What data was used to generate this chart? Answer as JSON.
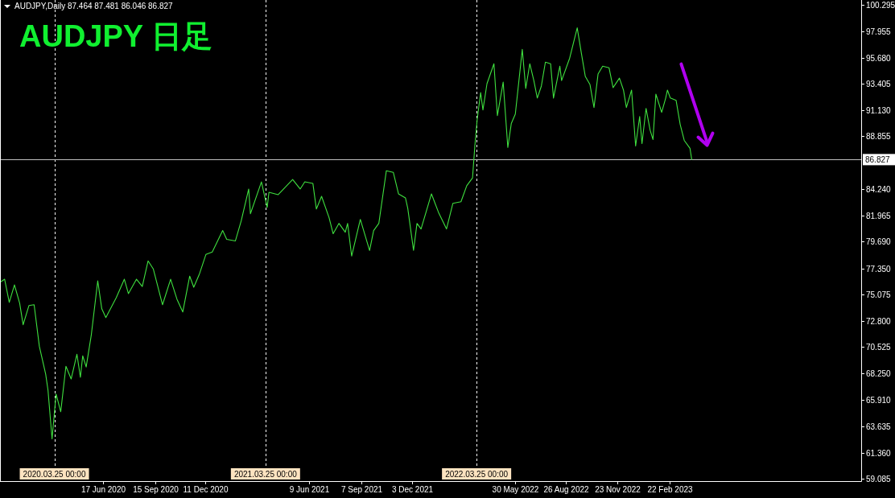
{
  "chart_data": {
    "type": "line",
    "title": "AUDJPY 日足",
    "annotations": [
      "AUDJPY,Daily 87.464 87.481 86.046 86.827"
    ],
    "x": [
      "2019-12-24",
      "2019-12-30",
      "2020-01-07",
      "2020-01-16",
      "2020-01-25",
      "2020-01-31",
      "2020-02-10",
      "2020-02-19",
      "2020-02-28",
      "2020-03-10",
      "2020-03-14",
      "2020-03-21",
      "2020-03-28",
      "2020-04-05",
      "2020-04-14",
      "2020-04-23",
      "2020-05-03",
      "2020-05-09",
      "2020-05-13",
      "2020-05-19",
      "2020-05-28",
      "2020-06-08",
      "2020-06-15",
      "2020-06-22",
      "2020-07-10",
      "2020-07-24",
      "2020-07-31",
      "2020-08-14",
      "2020-08-24",
      "2020-09-03",
      "2020-09-12",
      "2020-09-28",
      "2020-10-12",
      "2020-10-23",
      "2020-11-02",
      "2020-11-14",
      "2020-11-21",
      "2020-12-01",
      "2020-12-12",
      "2020-12-23",
      "2021-01-10",
      "2021-01-17",
      "2021-02-01",
      "2021-02-11",
      "2021-02-24",
      "2021-02-27",
      "2021-03-18",
      "2021-03-28",
      "2021-03-31",
      "2021-04-16",
      "2021-05-11",
      "2021-05-24",
      "2021-06-01",
      "2021-06-15",
      "2021-06-21",
      "2021-06-30",
      "2021-07-13",
      "2021-07-20",
      "2021-07-30",
      "2021-08-10",
      "2021-08-14",
      "2021-08-21",
      "2021-09-05",
      "2021-09-21",
      "2021-09-28",
      "2021-10-07",
      "2021-10-20",
      "2021-11-01",
      "2021-11-10",
      "2021-11-22",
      "2021-11-26",
      "2021-12-06",
      "2021-12-12",
      "2021-12-19",
      "2022-01-06",
      "2022-01-18",
      "2022-02-01",
      "2022-02-12",
      "2022-02-26",
      "2022-03-08",
      "2022-03-18",
      "2022-03-22",
      "2022-03-26",
      "2022-04-01",
      "2022-04-05",
      "2022-04-12",
      "2022-04-24",
      "2022-04-30",
      "2022-05-10",
      "2022-05-18",
      "2022-05-24",
      "2022-05-31",
      "2022-06-12",
      "2022-06-18",
      "2022-06-25",
      "2022-07-02",
      "2022-07-08",
      "2022-07-15",
      "2022-07-22",
      "2022-07-31",
      "2022-08-05",
      "2022-08-16",
      "2022-08-19",
      "2022-09-02",
      "2022-09-15",
      "2022-09-22",
      "2022-09-29",
      "2022-10-07",
      "2022-10-14",
      "2022-10-21",
      "2022-10-29",
      "2022-11-09",
      "2022-11-16",
      "2022-11-27",
      "2022-12-04",
      "2022-12-09",
      "2022-12-18",
      "2022-12-25",
      "2023-01-01",
      "2023-01-05",
      "2023-01-12",
      "2023-01-19",
      "2023-01-24",
      "2023-01-29",
      "2023-02-08",
      "2023-02-15",
      "2023-02-18",
      "2023-02-23",
      "2023-03-05",
      "2023-03-12",
      "2023-03-19",
      "2023-03-29",
      "2023-04-01"
    ],
    "series": [
      {
        "color": "#3fe03f",
        "values": [
          76.22,
          76.43,
          74.42,
          75.94,
          74.35,
          72.47,
          74.14,
          74.21,
          70.6,
          68.17,
          66.78,
          62.55,
          66.44,
          64.91,
          68.86,
          67.76,
          69.91,
          67.9,
          69.77,
          68.8,
          71.64,
          76.29,
          73.86,
          73.1,
          74.83,
          76.43,
          75.18,
          76.43,
          75.8,
          78.02,
          77.33,
          74.21,
          76.43,
          74.69,
          73.58,
          76.7,
          75.73,
          76.91,
          78.58,
          78.79,
          80.66,
          79.9,
          79.76,
          81.49,
          84.27,
          82.12,
          84.89,
          82.67,
          83.99,
          83.78,
          85.1,
          84.27,
          84.89,
          84.75,
          82.53,
          83.64,
          81.77,
          80.38,
          81.28,
          80.52,
          81.28,
          78.44,
          81.63,
          78.93,
          80.66,
          81.28,
          85.86,
          85.72,
          83.85,
          83.5,
          82.6,
          78.93,
          81.28,
          80.8,
          83.85,
          82.26,
          80.8,
          83.02,
          83.16,
          84.55,
          85.24,
          88.01,
          90.3,
          92.66,
          91.14,
          93.43,
          95.16,
          90.65,
          93.56,
          87.88,
          89.96,
          90.79,
          96.41,
          93.01,
          95.16,
          93.7,
          92.18,
          93.22,
          95.3,
          95.16,
          92.18,
          94.95,
          93.7,
          95.65,
          98.28,
          96.13,
          94.05,
          93.36,
          91.35,
          94.26,
          94.95,
          94.81,
          93.08,
          93.91,
          92.87,
          91.35,
          92.87,
          88.01,
          90.58,
          88.22,
          91.28,
          89.4,
          88.57,
          92.52,
          90.93,
          92.18,
          92.87,
          92.18,
          91.97,
          89.89,
          88.5,
          87.81,
          86.83
        ]
      }
    ],
    "xlim": [
      "2019-12-22",
      "2024-01-19"
    ],
    "ylim": [
      58.88,
      100.7
    ],
    "xticks": [
      {
        "value": "2020-06-17",
        "label": "17 Jun 2020"
      },
      {
        "value": "2020-09-15",
        "label": "15 Sep 2020"
      },
      {
        "value": "2020-12-11",
        "label": "11 Dec 2020"
      },
      {
        "value": "2021-06-09",
        "label": "9 Jun 2021"
      },
      {
        "value": "2021-09-07",
        "label": "7 Sep 2021"
      },
      {
        "value": "2021-12-03",
        "label": "3 Dec 2021"
      },
      {
        "value": "2022-05-30",
        "label": "30 May 2022"
      },
      {
        "value": "2022-08-26",
        "label": "26 Aug 2022"
      },
      {
        "value": "2022-11-23",
        "label": "23 Nov 2022"
      },
      {
        "value": "2023-02-22",
        "label": "22 Feb 2023"
      }
    ],
    "yticks": [
      {
        "value": 100.295,
        "label": "100.295"
      },
      {
        "value": 97.955,
        "label": "97.955"
      },
      {
        "value": 95.68,
        "label": "95.680"
      },
      {
        "value": 93.405,
        "label": "93.405"
      },
      {
        "value": 91.13,
        "label": "91.130"
      },
      {
        "value": 88.855,
        "label": "88.855"
      },
      {
        "value": 84.24,
        "label": "84.240"
      },
      {
        "value": 81.965,
        "label": "81.965"
      },
      {
        "value": 79.69,
        "label": "79.690"
      },
      {
        "value": 77.35,
        "label": "77.350"
      },
      {
        "value": 75.075,
        "label": "75.075"
      },
      {
        "value": 72.8,
        "label": "72.800"
      },
      {
        "value": 70.525,
        "label": "70.525"
      },
      {
        "value": 68.25,
        "label": "68.250"
      },
      {
        "value": 65.91,
        "label": "65.910"
      },
      {
        "value": 63.635,
        "label": "63.635"
      },
      {
        "value": 61.36,
        "label": "61.360"
      },
      {
        "value": 59.085,
        "label": "59.085"
      }
    ],
    "ref_lines": [
      {
        "axis": "x",
        "value": "2020-03-25",
        "label": "2020.03.25 00:00",
        "color": "#ffffff",
        "line_style": "dashed"
      },
      {
        "axis": "x",
        "value": "2021-03-25",
        "label": "2021.03.25 00:00",
        "color": "#ffffff",
        "line_style": "dashed"
      },
      {
        "axis": "x",
        "value": "2022-03-25",
        "label": "2022.03.25 00:00",
        "color": "#ffffff",
        "line_style": "dashed"
      },
      {
        "axis": "y",
        "value": 86.827,
        "label": "86.827",
        "color": "#c0c0c0",
        "line_style": "solid"
      }
    ],
    "grid": false,
    "marker": "none",
    "line_style": "solid"
  }
}
